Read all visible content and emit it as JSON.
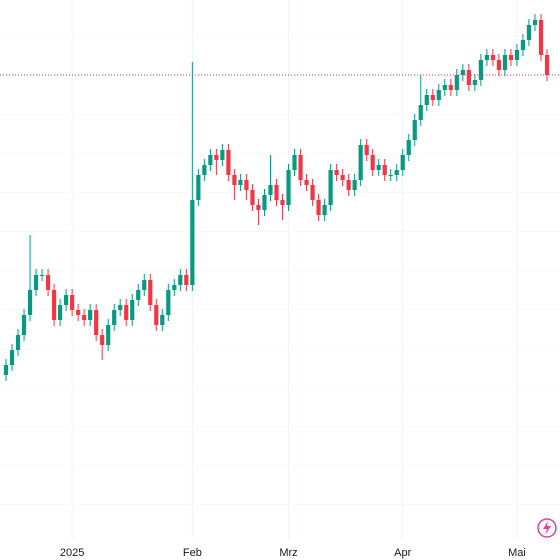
{
  "chart_data": {
    "type": "candlestick",
    "x": [
      0,
      1,
      2,
      3,
      4,
      5,
      6,
      7,
      8,
      9,
      10,
      11,
      12,
      13,
      14,
      15,
      16,
      17,
      18,
      19,
      20,
      21,
      22,
      23,
      24,
      25,
      26,
      27,
      28,
      29,
      30,
      31,
      32,
      33,
      34,
      35,
      36,
      37,
      38,
      39,
      40,
      41,
      42,
      43,
      44,
      45,
      46,
      47,
      48,
      49,
      50,
      51,
      52,
      53,
      54,
      55,
      56,
      57,
      58,
      59,
      60,
      61,
      62,
      63,
      64,
      65,
      66,
      67,
      68,
      69,
      70,
      71,
      72,
      73,
      74,
      75,
      76,
      77,
      78,
      79,
      80,
      81,
      82,
      83,
      84,
      85,
      86,
      87,
      88,
      89,
      90
    ],
    "open": [
      185,
      195,
      210,
      225,
      245,
      270,
      285,
      285,
      270,
      240,
      255,
      265,
      250,
      245,
      240,
      250,
      225,
      215,
      235,
      250,
      255,
      240,
      260,
      270,
      280,
      255,
      235,
      245,
      270,
      275,
      285,
      275,
      360,
      385,
      395,
      405,
      400,
      410,
      385,
      375,
      380,
      370,
      355,
      350,
      365,
      375,
      360,
      355,
      390,
      405,
      380,
      375,
      360,
      345,
      355,
      390,
      385,
      380,
      370,
      380,
      415,
      405,
      390,
      395,
      385,
      385,
      390,
      405,
      420,
      440,
      455,
      465,
      460,
      470,
      475,
      470,
      485,
      490,
      475,
      480,
      500,
      505,
      500,
      490,
      505,
      500,
      510,
      520,
      535,
      540,
      505
    ],
    "high": [
      201,
      216,
      231,
      251,
      325,
      291,
      291,
      291,
      276,
      261,
      271,
      271,
      256,
      251,
      256,
      256,
      231,
      241,
      256,
      261,
      261,
      266,
      276,
      286,
      286,
      261,
      251,
      276,
      281,
      291,
      291,
      498,
      391,
      401,
      411,
      411,
      416,
      416,
      391,
      386,
      386,
      376,
      361,
      371,
      405,
      381,
      366,
      396,
      411,
      411,
      386,
      381,
      366,
      361,
      396,
      396,
      391,
      386,
      386,
      421,
      421,
      411,
      401,
      401,
      391,
      396,
      411,
      426,
      446,
      485,
      471,
      471,
      476,
      481,
      481,
      491,
      496,
      496,
      486,
      506,
      511,
      511,
      506,
      511,
      511,
      516,
      526,
      541,
      546,
      546,
      511
    ],
    "low": [
      179,
      189,
      204,
      219,
      239,
      264,
      279,
      264,
      234,
      234,
      249,
      244,
      239,
      234,
      234,
      219,
      200,
      209,
      229,
      244,
      234,
      234,
      254,
      264,
      249,
      229,
      229,
      239,
      264,
      269,
      269,
      269,
      354,
      379,
      389,
      385,
      394,
      379,
      360,
      369,
      360,
      349,
      335,
      344,
      359,
      354,
      340,
      349,
      384,
      374,
      369,
      354,
      339,
      339,
      349,
      379,
      374,
      364,
      364,
      374,
      399,
      384,
      384,
      379,
      379,
      379,
      384,
      399,
      414,
      434,
      449,
      454,
      454,
      464,
      464,
      464,
      479,
      469,
      469,
      474,
      494,
      494,
      484,
      484,
      494,
      494,
      504,
      514,
      529,
      499,
      479
    ],
    "close": [
      195,
      210,
      225,
      245,
      270,
      285,
      285,
      270,
      240,
      255,
      265,
      250,
      245,
      240,
      250,
      225,
      215,
      235,
      250,
      255,
      240,
      260,
      270,
      280,
      255,
      235,
      245,
      270,
      275,
      285,
      275,
      360,
      385,
      395,
      405,
      400,
      410,
      385,
      375,
      380,
      370,
      355,
      350,
      365,
      375,
      360,
      355,
      390,
      405,
      380,
      375,
      360,
      345,
      355,
      390,
      385,
      380,
      370,
      380,
      415,
      405,
      390,
      395,
      385,
      385,
      390,
      405,
      420,
      440,
      455,
      465,
      460,
      470,
      475,
      470,
      485,
      490,
      475,
      480,
      500,
      505,
      500,
      490,
      505,
      500,
      510,
      520,
      535,
      540,
      505,
      485
    ],
    "xlim": [
      -0.5,
      91
    ],
    "xticks": [
      {
        "value": 11,
        "label": "2025"
      },
      {
        "value": 31,
        "label": "Feb"
      },
      {
        "value": 47,
        "label": "Mrz"
      },
      {
        "value": 66,
        "label": "Apr"
      },
      {
        "value": 85,
        "label": "Mai"
      }
    ],
    "ylim": [
      20,
      560
    ],
    "up_color": "#089981",
    "down_color": "#f23645",
    "grid": true
  }
}
